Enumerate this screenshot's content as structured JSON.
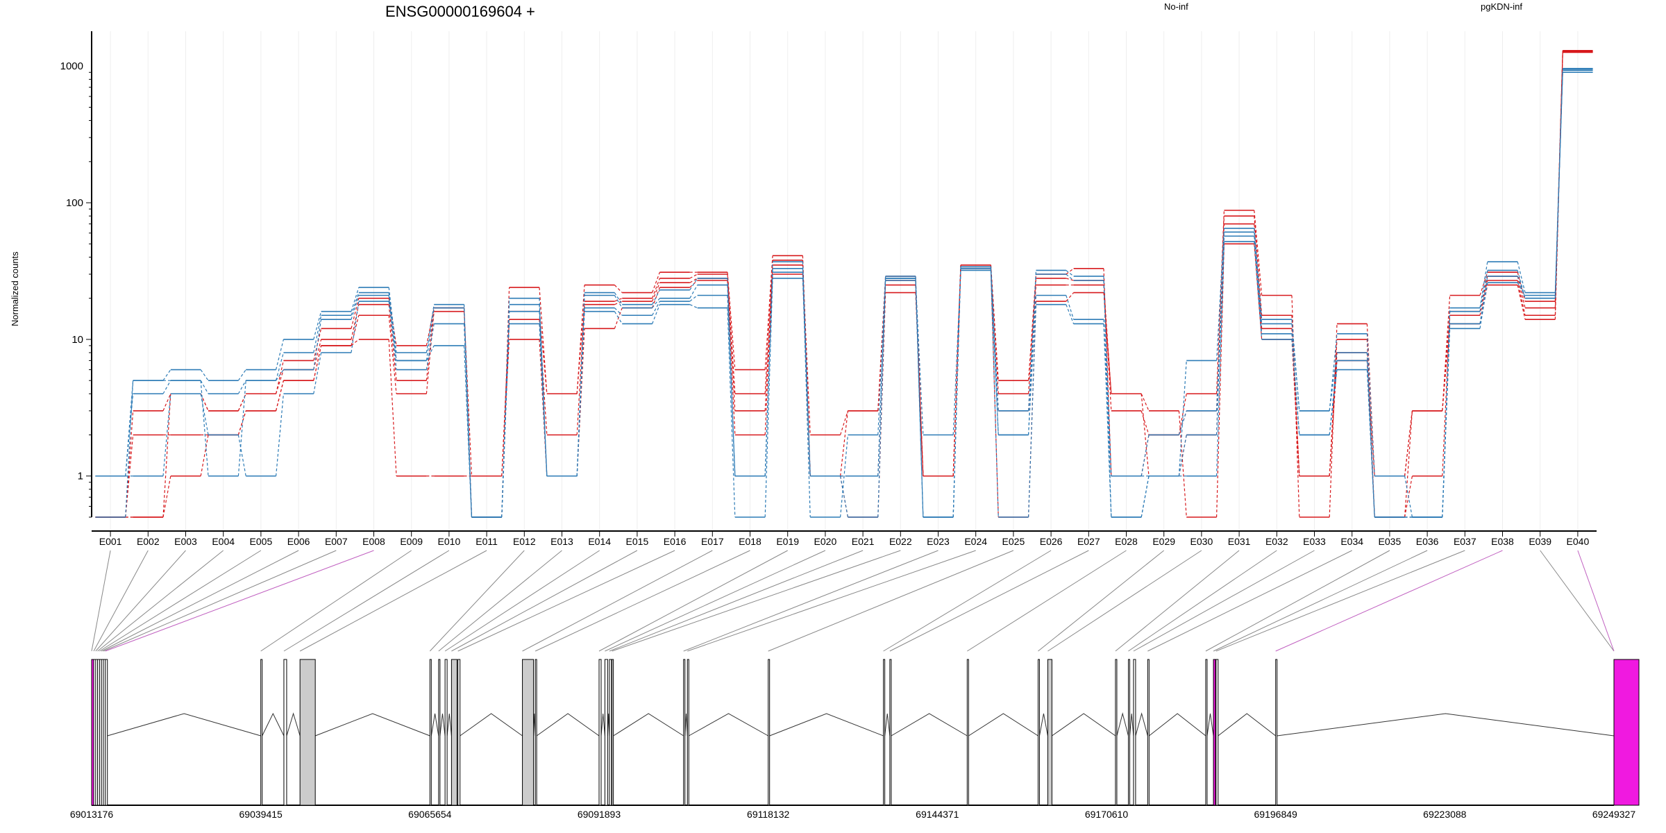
{
  "title": "ENSG00000169604 +",
  "legend": [
    {
      "label": "No-inf",
      "color": "#d7191c"
    },
    {
      "label": "pgKDN-inf",
      "color": "#2c7bb6"
    }
  ],
  "colors": {
    "no_inf": "#d7191c",
    "pgkdn_inf": "#2c7bb6",
    "highlight": "#f019e0",
    "exon_fill": "#cccccc"
  },
  "chart_data": {
    "type": "line",
    "ylabel": "Normalized counts",
    "yscale": "log",
    "yticks": [
      1,
      10,
      100,
      1000
    ],
    "ylim": [
      0.5,
      1800
    ],
    "grid": "vertical-light",
    "legend_position": "top",
    "categories": [
      "E001",
      "E002",
      "E003",
      "E004",
      "E005",
      "E006",
      "E007",
      "E008",
      "E009",
      "E010",
      "E011",
      "E012",
      "E013",
      "E014",
      "E015",
      "E016",
      "E017",
      "E018",
      "E019",
      "E020",
      "E021",
      "E022",
      "E023",
      "E024",
      "E025",
      "E026",
      "E027",
      "E028",
      "E029",
      "E030",
      "E031",
      "E032",
      "E033",
      "E034",
      "E035",
      "E036",
      "E037",
      "E038",
      "E039",
      "E040"
    ],
    "series": [
      {
        "group": "No-inf",
        "values": [
          0.5,
          0.5,
          1,
          2,
          3,
          5,
          9,
          10,
          1,
          1,
          1,
          10,
          1,
          12,
          17,
          24,
          27,
          2,
          30,
          1,
          0.5,
          22,
          1,
          33,
          0.5,
          19,
          22,
          4,
          3,
          0.5,
          50,
          10,
          1,
          7,
          1,
          3,
          13,
          25,
          14,
          1300
        ]
      },
      {
        "group": "No-inf",
        "values": [
          0.5,
          2,
          2,
          2,
          3,
          5,
          9,
          15,
          4,
          16,
          1,
          14,
          2,
          18,
          19,
          26,
          28,
          3,
          35,
          2,
          3,
          25,
          1,
          34,
          3,
          25,
          25,
          4,
          1,
          2,
          70,
          12,
          1,
          8,
          0.5,
          1,
          15,
          27,
          15,
          1280
        ]
      },
      {
        "group": "No-inf",
        "values": [
          0.5,
          3,
          4,
          3,
          4,
          6,
          10,
          18,
          5,
          17,
          0.5,
          16,
          4,
          19,
          20,
          28,
          30,
          4,
          38,
          1,
          1,
          27,
          1,
          35,
          4,
          28,
          27,
          3,
          2,
          3,
          80,
          15,
          1,
          10,
          0.5,
          3,
          16,
          29,
          17,
          1270
        ]
      },
      {
        "group": "No-inf",
        "values": [
          0.5,
          0.5,
          4,
          3,
          4,
          7,
          12,
          20,
          9,
          17,
          0.5,
          24,
          4,
          25,
          22,
          31,
          31,
          6,
          41,
          1,
          3,
          29,
          1,
          35,
          5,
          30,
          33,
          1,
          2,
          4,
          88,
          21,
          0.5,
          13,
          1,
          3,
          21,
          31,
          19,
          1260
        ]
      },
      {
        "group": "pgKDN-inf",
        "values": [
          1,
          1,
          4,
          2,
          1,
          4,
          8,
          19,
          7,
          9,
          0.5,
          13,
          1,
          16,
          13,
          18,
          17,
          0.5,
          28,
          1,
          1,
          27,
          2,
          32,
          0.5,
          18,
          13,
          0.5,
          1,
          1,
          52,
          10,
          2,
          6,
          0.5,
          0.5,
          12,
          26,
          21,
          900
        ]
      },
      {
        "group": "pgKDN-inf",
        "values": [
          1,
          4,
          5,
          1,
          5,
          6,
          14,
          21,
          6,
          13,
          0.5,
          16,
          1,
          17,
          15,
          19,
          21,
          1,
          31,
          0.5,
          2,
          28,
          0.5,
          33,
          2,
          21,
          14,
          1,
          1,
          2,
          57,
          11,
          2,
          7,
          0.5,
          0.5,
          13,
          29,
          20,
          930
        ]
      },
      {
        "group": "pgKDN-inf",
        "values": [
          1,
          5,
          5,
          4,
          5,
          8,
          15,
          22,
          7,
          17,
          0.5,
          18,
          1,
          21,
          17,
          20,
          25,
          1,
          33,
          1,
          1,
          28,
          0.5,
          34,
          3,
          30,
          27,
          1,
          2,
          3,
          61,
          13,
          3,
          8,
          0.5,
          0.5,
          16,
          32,
          20,
          950
        ]
      },
      {
        "group": "pgKDN-inf",
        "values": [
          0.5,
          5,
          6,
          5,
          6,
          10,
          16,
          24,
          8,
          18,
          0.5,
          20,
          1,
          22,
          18,
          23,
          28,
          1,
          37,
          1,
          0.5,
          29,
          0.5,
          34,
          2,
          32,
          29,
          0.5,
          1,
          7,
          65,
          14,
          3,
          11,
          1,
          0.5,
          17,
          37,
          22,
          960
        ]
      }
    ]
  },
  "genome_axis": {
    "ticks": [
      "69013176",
      "69039415",
      "69065654",
      "69091893",
      "69118132",
      "69144371",
      "69170610",
      "69196849",
      "69223088",
      "69249327"
    ],
    "range": [
      69013176,
      69249327
    ]
  }
}
